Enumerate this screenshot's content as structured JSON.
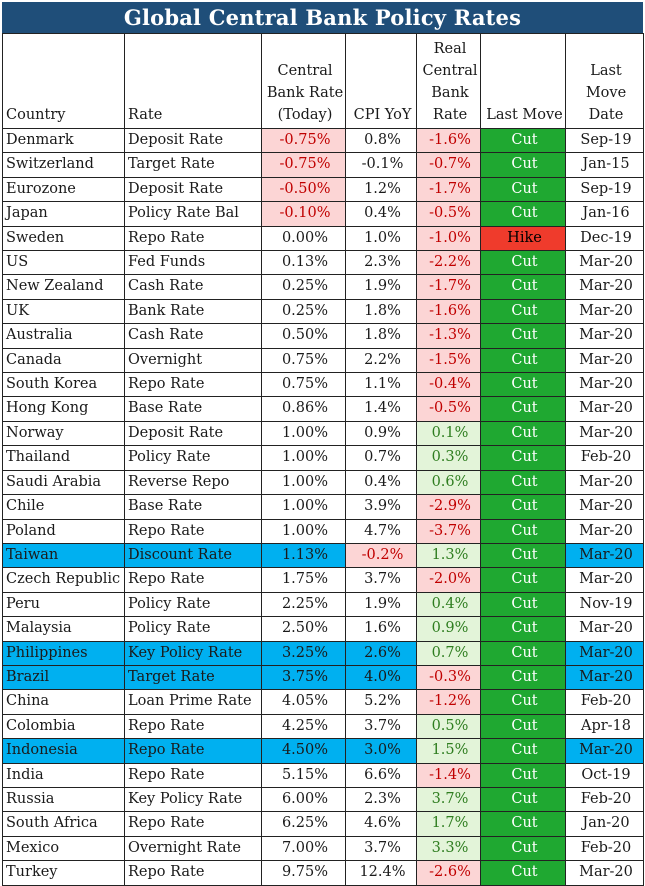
{
  "title": "Global Central Bank Policy Rates",
  "headers": {
    "country": "Country",
    "rate": "Rate",
    "cb_rate": "Central Bank Rate (Today)",
    "cpi": "CPI YoY",
    "real": "Real Central Bank Rate",
    "last_move": "Last Move",
    "date": "Last Move Date"
  },
  "colors": {
    "title_bg": "#1f4e79",
    "cut": "#1fa831",
    "hike": "#ef3b2c",
    "highlight": "#00b0f0",
    "negative_fill": "#fcd5d5",
    "positive_fill": "#e3f4d9"
  },
  "rows": [
    {
      "country": "Denmark",
      "rate": "Deposit Rate",
      "cb": "-0.75%",
      "cpi": "0.8%",
      "real": "-1.6%",
      "move": "Cut",
      "date": "Sep-19"
    },
    {
      "country": "Switzerland",
      "rate": "Target Rate",
      "cb": "-0.75%",
      "cpi": "-0.1%",
      "real": "-0.7%",
      "move": "Cut",
      "date": "Jan-15"
    },
    {
      "country": "Eurozone",
      "rate": "Deposit Rate",
      "cb": "-0.50%",
      "cpi": "1.2%",
      "real": "-1.7%",
      "move": "Cut",
      "date": "Sep-19"
    },
    {
      "country": "Japan",
      "rate": "Policy Rate Bal",
      "cb": "-0.10%",
      "cpi": "0.4%",
      "real": "-0.5%",
      "move": "Cut",
      "date": "Jan-16"
    },
    {
      "country": "Sweden",
      "rate": "Repo Rate",
      "cb": "0.00%",
      "cpi": "1.0%",
      "real": "-1.0%",
      "move": "Hike",
      "date": "Dec-19"
    },
    {
      "country": "US",
      "rate": "Fed Funds",
      "cb": "0.13%",
      "cpi": "2.3%",
      "real": "-2.2%",
      "move": "Cut",
      "date": "Mar-20"
    },
    {
      "country": "New Zealand",
      "rate": "Cash Rate",
      "cb": "0.25%",
      "cpi": "1.9%",
      "real": "-1.7%",
      "move": "Cut",
      "date": "Mar-20"
    },
    {
      "country": "UK",
      "rate": "Bank Rate",
      "cb": "0.25%",
      "cpi": "1.8%",
      "real": "-1.6%",
      "move": "Cut",
      "date": "Mar-20"
    },
    {
      "country": "Australia",
      "rate": "Cash Rate",
      "cb": "0.50%",
      "cpi": "1.8%",
      "real": "-1.3%",
      "move": "Cut",
      "date": "Mar-20"
    },
    {
      "country": "Canada",
      "rate": "Overnight",
      "cb": "0.75%",
      "cpi": "2.2%",
      "real": "-1.5%",
      "move": "Cut",
      "date": "Mar-20"
    },
    {
      "country": "South Korea",
      "rate": "Repo Rate",
      "cb": "0.75%",
      "cpi": "1.1%",
      "real": "-0.4%",
      "move": "Cut",
      "date": "Mar-20"
    },
    {
      "country": "Hong Kong",
      "rate": "Base Rate",
      "cb": "0.86%",
      "cpi": "1.4%",
      "real": "-0.5%",
      "move": "Cut",
      "date": "Mar-20"
    },
    {
      "country": "Norway",
      "rate": "Deposit Rate",
      "cb": "1.00%",
      "cpi": "0.9%",
      "real": "0.1%",
      "move": "Cut",
      "date": "Mar-20"
    },
    {
      "country": "Thailand",
      "rate": "Policy Rate",
      "cb": "1.00%",
      "cpi": "0.7%",
      "real": "0.3%",
      "move": "Cut",
      "date": "Feb-20"
    },
    {
      "country": "Saudi Arabia",
      "rate": "Reverse Repo",
      "cb": "1.00%",
      "cpi": "0.4%",
      "real": "0.6%",
      "move": "Cut",
      "date": "Mar-20"
    },
    {
      "country": "Chile",
      "rate": "Base Rate",
      "cb": "1.00%",
      "cpi": "3.9%",
      "real": "-2.9%",
      "move": "Cut",
      "date": "Mar-20"
    },
    {
      "country": "Poland",
      "rate": "Repo Rate",
      "cb": "1.00%",
      "cpi": "4.7%",
      "real": "-3.7%",
      "move": "Cut",
      "date": "Mar-20"
    },
    {
      "country": "Taiwan",
      "rate": "Discount Rate",
      "cb": "1.13%",
      "cpi": "-0.2%",
      "real": "1.3%",
      "move": "Cut",
      "date": "Mar-20",
      "highlight": true
    },
    {
      "country": "Czech Republic",
      "rate": "Repo Rate",
      "cb": "1.75%",
      "cpi": "3.7%",
      "real": "-2.0%",
      "move": "Cut",
      "date": "Mar-20"
    },
    {
      "country": "Peru",
      "rate": "Policy Rate",
      "cb": "2.25%",
      "cpi": "1.9%",
      "real": "0.4%",
      "move": "Cut",
      "date": "Nov-19"
    },
    {
      "country": "Malaysia",
      "rate": "Policy Rate",
      "cb": "2.50%",
      "cpi": "1.6%",
      "real": "0.9%",
      "move": "Cut",
      "date": "Mar-20"
    },
    {
      "country": "Philippines",
      "rate": "Key Policy Rate",
      "cb": "3.25%",
      "cpi": "2.6%",
      "real": "0.7%",
      "move": "Cut",
      "date": "Mar-20",
      "highlight": true
    },
    {
      "country": "Brazil",
      "rate": "Target Rate",
      "cb": "3.75%",
      "cpi": "4.0%",
      "real": "-0.3%",
      "move": "Cut",
      "date": "Mar-20",
      "highlight": true
    },
    {
      "country": "China",
      "rate": "Loan Prime Rate",
      "cb": "4.05%",
      "cpi": "5.2%",
      "real": "-1.2%",
      "move": "Cut",
      "date": "Feb-20"
    },
    {
      "country": "Colombia",
      "rate": "Repo Rate",
      "cb": "4.25%",
      "cpi": "3.7%",
      "real": "0.5%",
      "move": "Cut",
      "date": "Apr-18"
    },
    {
      "country": "Indonesia",
      "rate": "Repo Rate",
      "cb": "4.50%",
      "cpi": "3.0%",
      "real": "1.5%",
      "move": "Cut",
      "date": "Mar-20",
      "highlight": true
    },
    {
      "country": "India",
      "rate": "Repo Rate",
      "cb": "5.15%",
      "cpi": "6.6%",
      "real": "-1.4%",
      "move": "Cut",
      "date": "Oct-19"
    },
    {
      "country": "Russia",
      "rate": "Key Policy Rate",
      "cb": "6.00%",
      "cpi": "2.3%",
      "real": "3.7%",
      "move": "Cut",
      "date": "Feb-20"
    },
    {
      "country": "South Africa",
      "rate": "Repo Rate",
      "cb": "6.25%",
      "cpi": "4.6%",
      "real": "1.7%",
      "move": "Cut",
      "date": "Jan-20"
    },
    {
      "country": "Mexico",
      "rate": "Overnight Rate",
      "cb": "7.00%",
      "cpi": "3.7%",
      "real": "3.3%",
      "move": "Cut",
      "date": "Feb-20"
    },
    {
      "country": "Turkey",
      "rate": "Repo Rate",
      "cb": "9.75%",
      "cpi": "12.4%",
      "real": "-2.6%",
      "move": "Cut",
      "date": "Mar-20"
    }
  ]
}
